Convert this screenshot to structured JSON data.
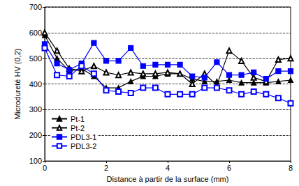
{
  "chart_data": {
    "type": "line",
    "x_label": "Distance à partir de la surface (mm)",
    "y_label": "Microdureté HV (0,2)",
    "x": [
      0,
      0.4,
      0.8,
      1.2,
      1.6,
      2.0,
      2.4,
      2.8,
      3.2,
      3.6,
      4.0,
      4.4,
      4.8,
      5.2,
      5.6,
      6.0,
      6.4,
      6.8,
      7.2,
      7.6,
      8.0
    ],
    "series": [
      {
        "name": "Pt-1",
        "color": "#000000",
        "marker": "triangle",
        "values": [
          590,
          500,
          450,
          460,
          430,
          385,
          385,
          410,
          430,
          430,
          440,
          440,
          420,
          410,
          410,
          415,
          405,
          405,
          405,
          410,
          415
        ]
      },
      {
        "name": "Pt-2",
        "color": "#000000",
        "marker": "open triangle",
        "values": [
          600,
          530,
          460,
          450,
          470,
          445,
          435,
          445,
          440,
          440,
          445,
          440,
          400,
          440,
          395,
          530,
          490,
          425,
          410,
          495,
          500
        ]
      },
      {
        "name": "PDL3-1",
        "color": "#0000ff",
        "marker": "square",
        "values": [
          555,
          480,
          455,
          480,
          560,
          490,
          490,
          540,
          470,
          475,
          475,
          475,
          430,
          425,
          485,
          435,
          435,
          445,
          420,
          450,
          450
        ]
      },
      {
        "name": "PDL3-2",
        "color": "#0000ff",
        "marker": "open square",
        "values": [
          540,
          435,
          430,
          470,
          440,
          375,
          370,
          365,
          385,
          385,
          360,
          360,
          360,
          385,
          385,
          375,
          360,
          370,
          360,
          345,
          325
        ]
      }
    ],
    "xlim": [
      0,
      8
    ],
    "xticks": [
      0,
      2,
      4,
      6,
      8
    ],
    "ylim": [
      100,
      700
    ],
    "yticks": [
      100,
      200,
      300,
      400,
      500,
      600,
      700
    ],
    "grid": true,
    "legend": "lower left"
  }
}
